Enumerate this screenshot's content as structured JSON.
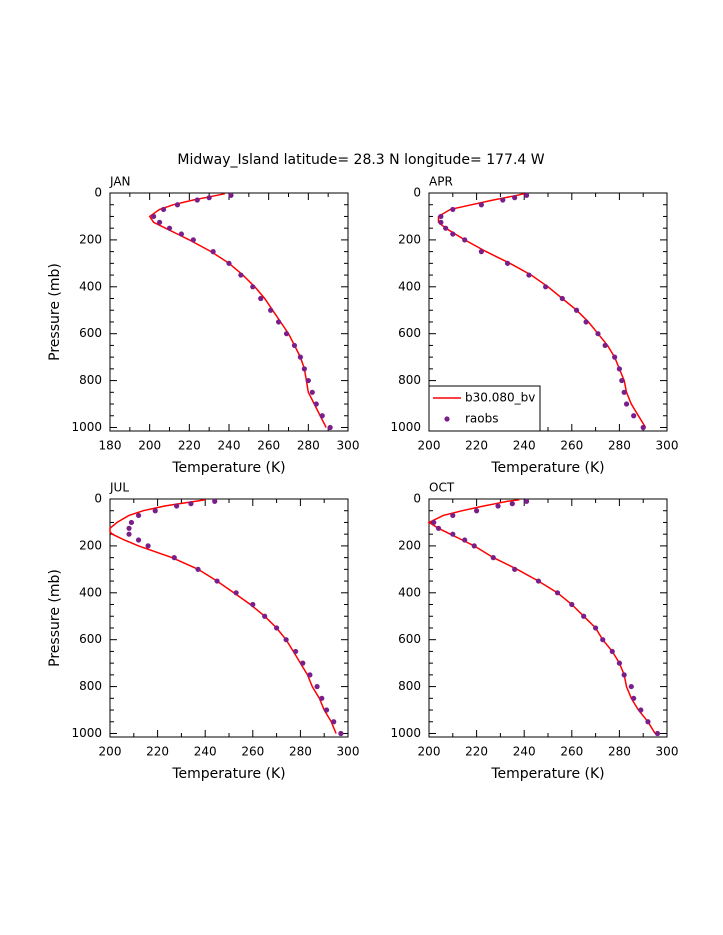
{
  "title": "Midway_Island  latitude= 28.3 N longitude= 177.4 W",
  "chart_data": [
    {
      "type": "line",
      "title": "JAN",
      "xlabel": "Temperature (K)",
      "ylabel": "Pressure (mb)",
      "xlim": [
        180,
        300
      ],
      "xticks": [
        180,
        200,
        220,
        240,
        260,
        280,
        300
      ],
      "ylim": [
        0,
        1015
      ],
      "yticks": [
        0,
        200,
        400,
        600,
        800,
        1000
      ],
      "y_inverted": true,
      "series": [
        {
          "name": "b30.080_bv",
          "color": "#ff0000",
          "mode": "line",
          "levels": [
            3,
            10,
            20,
            30,
            50,
            70,
            100,
            125,
            150,
            175,
            200,
            250,
            300,
            350,
            400,
            450,
            500,
            550,
            600,
            650,
            700,
            750,
            800,
            850,
            900,
            950,
            1000
          ],
          "values": [
            238,
            234,
            228,
            222,
            212,
            205,
            200,
            202,
            208,
            214,
            220,
            231,
            240,
            247,
            253,
            258,
            262,
            266,
            270,
            273,
            276,
            278,
            279,
            280,
            283,
            286,
            289
          ]
        },
        {
          "name": "raobs",
          "color": "#7a1f8a",
          "mode": "markers",
          "levels": [
            10,
            20,
            30,
            50,
            70,
            100,
            125,
            150,
            175,
            200,
            250,
            300,
            350,
            400,
            450,
            500,
            550,
            600,
            650,
            700,
            750,
            800,
            850,
            900,
            950,
            1000
          ],
          "values": [
            241,
            230,
            224,
            214,
            207,
            202,
            205,
            210,
            216,
            222,
            232,
            240,
            246,
            252,
            256,
            261,
            265,
            269,
            273,
            276,
            278,
            280,
            282,
            284,
            287,
            291
          ]
        }
      ]
    },
    {
      "type": "line",
      "title": "APR",
      "xlabel": "Temperature (K)",
      "xlim": [
        200,
        300
      ],
      "xticks": [
        200,
        220,
        240,
        260,
        280,
        300
      ],
      "ylim": [
        0,
        1015
      ],
      "yticks": [
        0,
        200,
        400,
        600,
        800,
        1000
      ],
      "y_inverted": true,
      "legend": "lower left",
      "series": [
        {
          "name": "b30.080_bv",
          "color": "#ff0000",
          "mode": "line",
          "levels": [
            3,
            10,
            20,
            30,
            50,
            70,
            100,
            125,
            150,
            175,
            200,
            250,
            300,
            350,
            400,
            450,
            500,
            550,
            600,
            650,
            700,
            750,
            800,
            850,
            900,
            950,
            1000
          ],
          "values": [
            240,
            237,
            232,
            227,
            218,
            209,
            204,
            204,
            207,
            211,
            215,
            224,
            234,
            243,
            250,
            256,
            262,
            267,
            271,
            275,
            278,
            280,
            282,
            283,
            285,
            288,
            291
          ]
        },
        {
          "name": "raobs",
          "color": "#7a1f8a",
          "mode": "markers",
          "levels": [
            10,
            20,
            30,
            50,
            70,
            100,
            125,
            150,
            175,
            200,
            250,
            300,
            350,
            400,
            450,
            500,
            550,
            600,
            650,
            700,
            750,
            800,
            850,
            900,
            950,
            1000
          ],
          "values": [
            241,
            236,
            231,
            222,
            210,
            205,
            205,
            207,
            210,
            215,
            222,
            233,
            242,
            249,
            256,
            262,
            266,
            271,
            274,
            278,
            280,
            281,
            282,
            283,
            286,
            290
          ]
        }
      ]
    },
    {
      "type": "line",
      "title": "JUL",
      "xlabel": "Temperature (K)",
      "ylabel": "Pressure (mb)",
      "xlim": [
        200,
        300
      ],
      "xticks": [
        200,
        220,
        240,
        260,
        280,
        300
      ],
      "ylim": [
        0,
        1015
      ],
      "yticks": [
        0,
        200,
        400,
        600,
        800,
        1000
      ],
      "y_inverted": true,
      "series": [
        {
          "name": "b30.080_bv",
          "color": "#ff0000",
          "mode": "line",
          "levels": [
            3,
            10,
            20,
            30,
            50,
            70,
            100,
            125,
            140,
            150,
            175,
            200,
            250,
            300,
            350,
            400,
            450,
            500,
            550,
            600,
            650,
            700,
            750,
            800,
            850,
            900,
            950,
            1000
          ],
          "values": [
            240,
            236,
            229,
            223,
            214,
            208,
            203,
            200,
            200,
            201,
            206,
            212,
            226,
            237,
            245,
            252,
            259,
            265,
            270,
            274,
            277,
            280,
            283,
            285,
            288,
            290,
            293,
            295
          ]
        },
        {
          "name": "raobs",
          "color": "#7a1f8a",
          "mode": "markers",
          "levels": [
            10,
            20,
            30,
            50,
            70,
            100,
            125,
            150,
            175,
            200,
            250,
            300,
            350,
            400,
            450,
            500,
            550,
            600,
            650,
            700,
            750,
            800,
            850,
            900,
            950,
            1000
          ],
          "values": [
            244,
            234,
            228,
            219,
            212,
            209,
            208,
            208,
            212,
            216,
            227,
            237,
            245,
            253,
            260,
            265,
            270,
            274,
            278,
            281,
            284,
            287,
            289,
            291,
            294,
            297
          ]
        }
      ]
    },
    {
      "type": "line",
      "title": "OCT",
      "xlabel": "Temperature (K)",
      "xlim": [
        200,
        300
      ],
      "xticks": [
        200,
        220,
        240,
        260,
        280,
        300
      ],
      "ylim": [
        0,
        1015
      ],
      "yticks": [
        0,
        200,
        400,
        600,
        800,
        1000
      ],
      "y_inverted": true,
      "series": [
        {
          "name": "b30.080_bv",
          "color": "#ff0000",
          "mode": "line",
          "levels": [
            3,
            10,
            20,
            30,
            50,
            70,
            100,
            125,
            150,
            175,
            200,
            250,
            300,
            350,
            400,
            450,
            500,
            550,
            600,
            650,
            700,
            750,
            800,
            850,
            900,
            950,
            1000
          ],
          "values": [
            238,
            233,
            228,
            223,
            214,
            206,
            200,
            204,
            209,
            214,
            219,
            227,
            237,
            246,
            254,
            260,
            265,
            270,
            273,
            277,
            280,
            282,
            283,
            285,
            288,
            292,
            295
          ]
        },
        {
          "name": "raobs",
          "color": "#7a1f8a",
          "mode": "markers",
          "levels": [
            10,
            20,
            30,
            50,
            70,
            100,
            125,
            150,
            175,
            200,
            250,
            300,
            350,
            400,
            450,
            500,
            550,
            600,
            650,
            700,
            750,
            800,
            850,
            900,
            950,
            1000
          ],
          "values": [
            241,
            235,
            229,
            220,
            210,
            202,
            204,
            210,
            215,
            219,
            227,
            236,
            246,
            254,
            260,
            265,
            270,
            273,
            277,
            280,
            282,
            285,
            286,
            289,
            292,
            296
          ]
        }
      ]
    }
  ]
}
